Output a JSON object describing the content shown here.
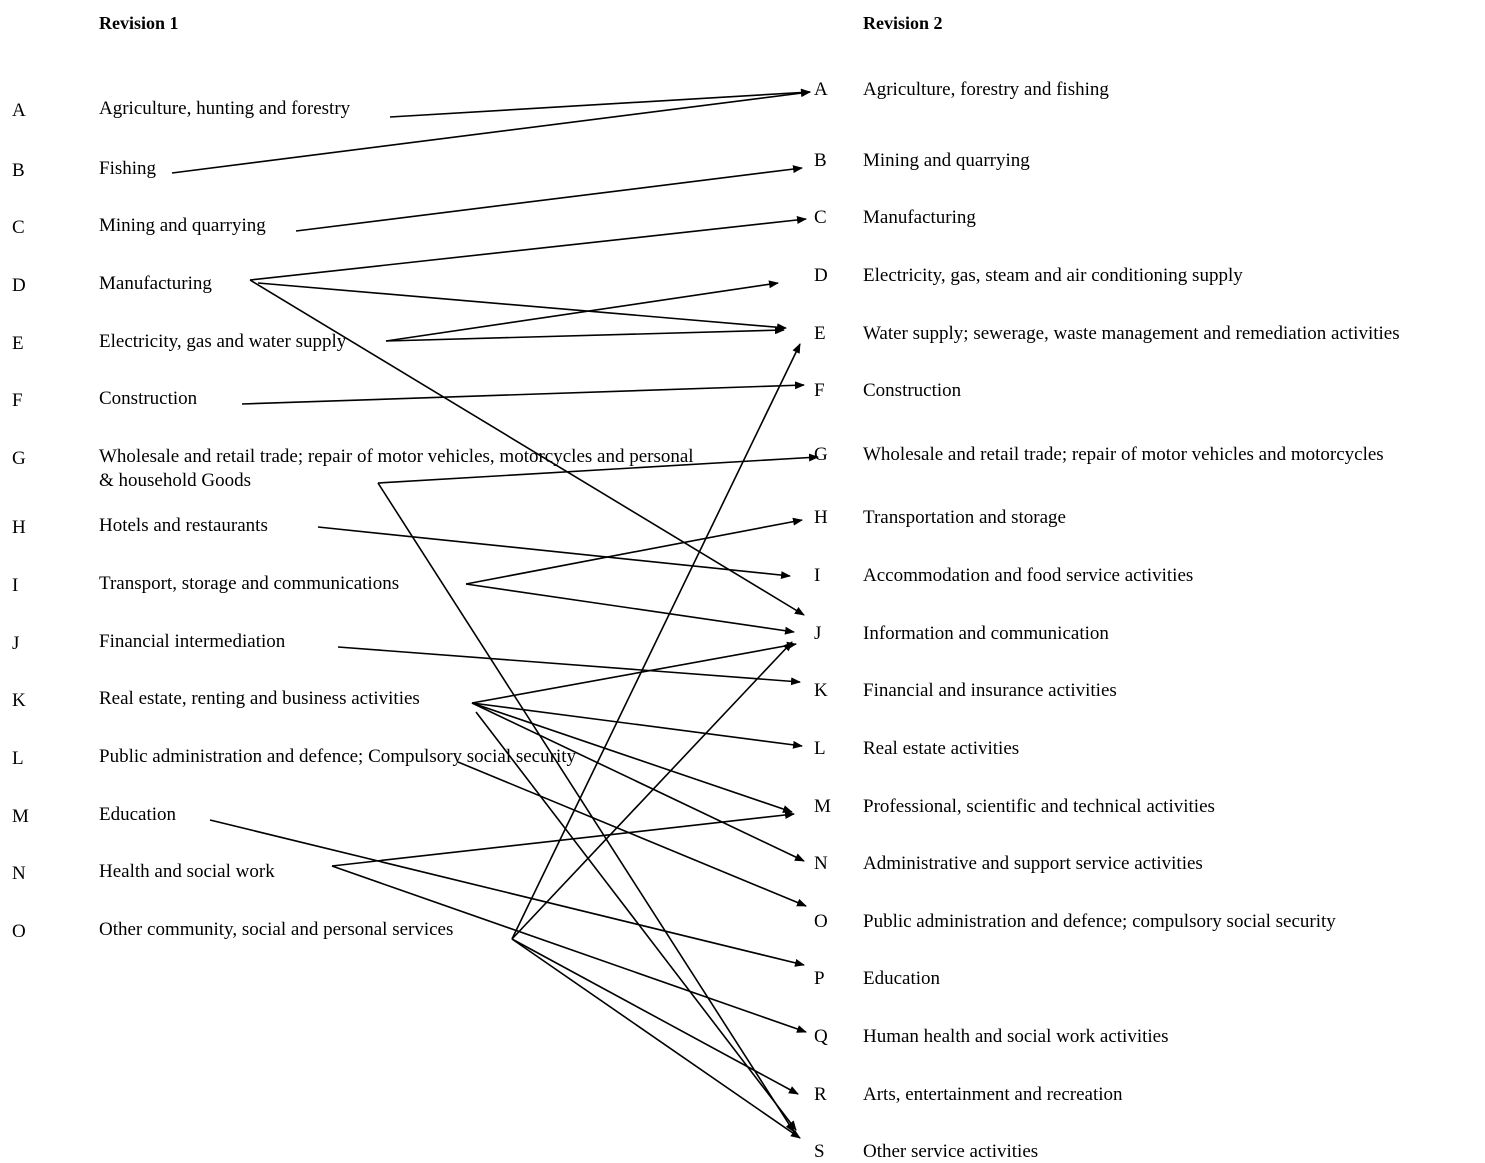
{
  "headers": {
    "left": "Revision 1",
    "right": "Revision 2"
  },
  "left_items": [
    {
      "code": "A",
      "label": "Agriculture, hunting and forestry"
    },
    {
      "code": "B",
      "label": "Fishing"
    },
    {
      "code": "C",
      "label": "Mining and quarrying"
    },
    {
      "code": "D",
      "label": "Manufacturing"
    },
    {
      "code": "E",
      "label": "Electricity, gas and water supply"
    },
    {
      "code": "F",
      "label": "Construction"
    },
    {
      "code": "G",
      "label": "Wholesale and retail trade; repair of motor vehicles, motorcycles and personal & household Goods"
    },
    {
      "code": "H",
      "label": "Hotels and restaurants"
    },
    {
      "code": "I",
      "label": "Transport, storage and communications"
    },
    {
      "code": "J",
      "label": "Financial intermediation"
    },
    {
      "code": "K",
      "label": "Real estate, renting and business activities"
    },
    {
      "code": "L",
      "label": "Public administration and defence; Compulsory social security"
    },
    {
      "code": "M",
      "label": "Education"
    },
    {
      "code": "N",
      "label": "Health and social work"
    },
    {
      "code": "O",
      "label": "Other community, social and personal services"
    }
  ],
  "right_items": [
    {
      "code": "A",
      "label": "Agriculture, forestry and fishing"
    },
    {
      "code": "B",
      "label": "Mining and quarrying"
    },
    {
      "code": "C",
      "label": "Manufacturing"
    },
    {
      "code": "D",
      "label": "Electricity, gas, steam and air conditioning supply"
    },
    {
      "code": "E",
      "label": "Water supply; sewerage, waste management and remediation activities"
    },
    {
      "code": "F",
      "label": "Construction"
    },
    {
      "code": "G",
      "label": "Wholesale and retail trade; repair of motor vehicles and motorcycles"
    },
    {
      "code": "H",
      "label": "Transportation and storage"
    },
    {
      "code": "I",
      "label": "Accommodation and food service activities"
    },
    {
      "code": "J",
      "label": "Information and communication"
    },
    {
      "code": "K",
      "label": "Financial and insurance activities"
    },
    {
      "code": "L",
      "label": "Real estate activities"
    },
    {
      "code": "M",
      "label": "Professional, scientific and technical activities"
    },
    {
      "code": "N",
      "label": "Administrative and support service activities"
    },
    {
      "code": "O",
      "label": "Public administration and defence; compulsory social security"
    },
    {
      "code": "P",
      "label": "Education"
    },
    {
      "code": "Q",
      "label": "Human health and social work activities"
    },
    {
      "code": "R",
      "label": "Arts, entertainment and recreation"
    },
    {
      "code": "S",
      "label": "Other service activities"
    }
  ],
  "mappings": [
    {
      "from": "A",
      "to": "A"
    },
    {
      "from": "B",
      "to": "A"
    },
    {
      "from": "C",
      "to": "B"
    },
    {
      "from": "D",
      "to": "C"
    },
    {
      "from": "D",
      "to": "E"
    },
    {
      "from": "D",
      "to": "J"
    },
    {
      "from": "E",
      "to": "D"
    },
    {
      "from": "E",
      "to": "E"
    },
    {
      "from": "F",
      "to": "F"
    },
    {
      "from": "G",
      "to": "G"
    },
    {
      "from": "G",
      "to": "S"
    },
    {
      "from": "H",
      "to": "I"
    },
    {
      "from": "I",
      "to": "H"
    },
    {
      "from": "I",
      "to": "J"
    },
    {
      "from": "J",
      "to": "K"
    },
    {
      "from": "K",
      "to": "J"
    },
    {
      "from": "K",
      "to": "L"
    },
    {
      "from": "K",
      "to": "M"
    },
    {
      "from": "K",
      "to": "N"
    },
    {
      "from": "K",
      "to": "S"
    },
    {
      "from": "L",
      "to": "O"
    },
    {
      "from": "M",
      "to": "P"
    },
    {
      "from": "N",
      "to": "M"
    },
    {
      "from": "N",
      "to": "Q"
    },
    {
      "from": "O",
      "to": "E"
    },
    {
      "from": "O",
      "to": "J"
    },
    {
      "from": "O",
      "to": "R"
    },
    {
      "from": "O",
      "to": "S"
    }
  ]
}
